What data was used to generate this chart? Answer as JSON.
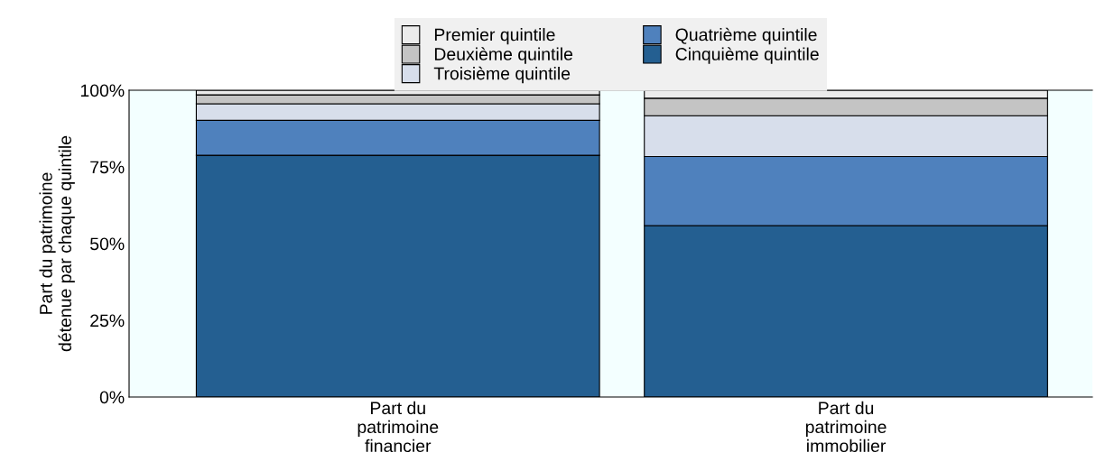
{
  "chart_data": {
    "type": "bar",
    "stacked": true,
    "ylabel": "Part du patrimoine\ndétenue par chaque quintile",
    "categories": [
      "Part du\npatrimoine\nfinancier",
      "Part du\npatrimoine\nimmobilier"
    ],
    "series": [
      {
        "name": "Cinquième quintile",
        "color": "#245f91",
        "values": [
          78.8,
          55.9
        ]
      },
      {
        "name": "Quatrième quintile",
        "color": "#4f81bd",
        "values": [
          11.4,
          22.5
        ]
      },
      {
        "name": "Troisième quintile",
        "color": "#d7deeb",
        "values": [
          5.4,
          13.3
        ]
      },
      {
        "name": "Deuxième quintile",
        "color": "#c4c4c4",
        "values": [
          2.9,
          5.7
        ]
      },
      {
        "name": "Premier quintile",
        "color": "#ebebeb",
        "values": [
          1.5,
          2.6
        ]
      }
    ],
    "ylim": [
      0,
      100
    ],
    "yticks": [
      {
        "value": 0,
        "label": "0%"
      },
      {
        "value": 25,
        "label": "25%"
      },
      {
        "value": 50,
        "label": "50%"
      },
      {
        "value": 75,
        "label": "75%"
      },
      {
        "value": 100,
        "label": "100%"
      }
    ],
    "legend": "top",
    "grid": false
  }
}
